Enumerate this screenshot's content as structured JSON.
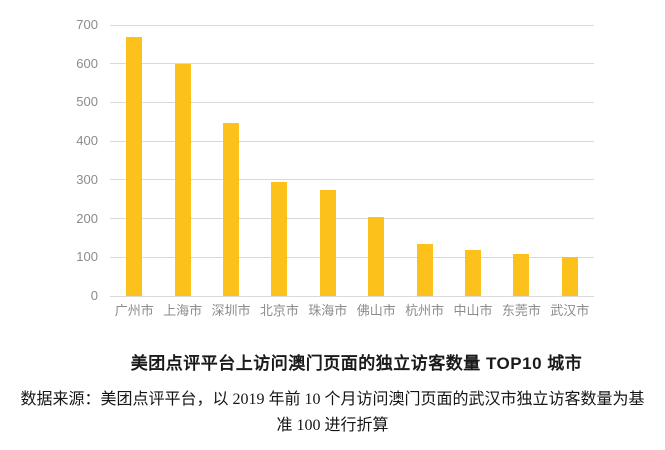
{
  "chart_data": {
    "type": "bar",
    "title": "美团点评平台上访问澳门页面的独立访客数量 TOP10 城市",
    "categories": [
      "广州市",
      "上海市",
      "深圳市",
      "北京市",
      "珠海市",
      "佛山市",
      "杭州市",
      "中山市",
      "东莞市",
      "武汉市"
    ],
    "values": [
      670,
      600,
      448,
      295,
      275,
      205,
      134,
      120,
      109,
      100
    ],
    "xlabel": "",
    "ylabel": "",
    "ylim": [
      0,
      700
    ],
    "yticks": [
      0,
      100,
      200,
      300,
      400,
      500,
      600,
      700
    ],
    "grid": true,
    "legend": "none",
    "colors": {
      "bar": "#FCC21B",
      "gridline": "#D9D9D9",
      "tick_label": "#8C8C8C",
      "title_text": "#1A1A1A",
      "background": "#FFFFFF"
    }
  },
  "caption": {
    "source_lines": [
      "数据来源：美团点评平台，以 2019 年前 10 个月访问澳门页面的武汉市独立访客数量为基",
      "准 100 进行折算"
    ]
  }
}
